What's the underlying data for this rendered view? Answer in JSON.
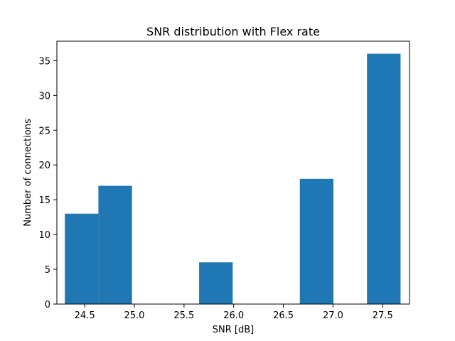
{
  "chart_data": {
    "type": "bar",
    "title": "SNR distribution with Flex rate",
    "xlabel": "SNR [dB]",
    "ylabel": "Number of connections",
    "xlim": [
      24.22,
      27.77
    ],
    "ylim": [
      0,
      37.8
    ],
    "xticks": [
      "24.5",
      "25.0",
      "25.5",
      "26.0",
      "26.5",
      "27.0",
      "27.5"
    ],
    "yticks": [
      "0",
      "5",
      "10",
      "15",
      "20",
      "25",
      "30",
      "35"
    ],
    "bin_edges": [
      24.3,
      24.638,
      24.976,
      25.314,
      25.652,
      25.99,
      26.328,
      26.666,
      27.004,
      27.342,
      27.68
    ],
    "values": [
      13,
      17,
      0,
      0,
      6,
      0,
      0,
      18,
      0,
      36
    ],
    "bar_color": "#1f77b4",
    "grid": false
  }
}
